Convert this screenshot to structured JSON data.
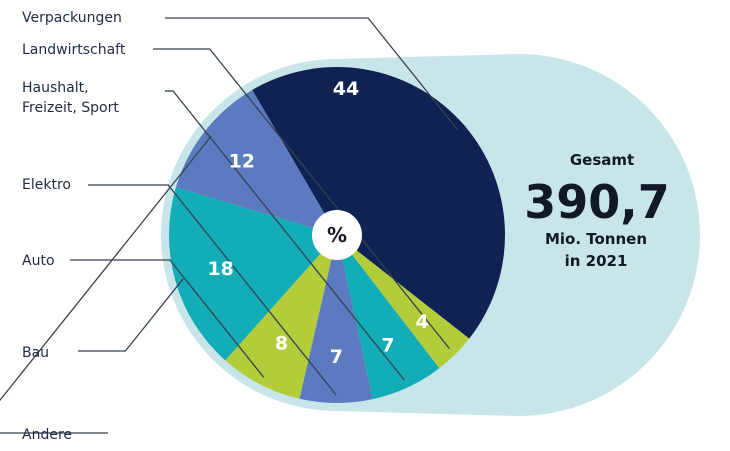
{
  "chart_data": {
    "type": "pie",
    "center_label": "%",
    "categories": [
      "Verpackungen",
      "Landwirtschaft",
      "Haushalt, Freizeit, Sport",
      "Elektro",
      "Auto",
      "Bau",
      "Andere"
    ],
    "category_lines": [
      [
        "Verpackungen"
      ],
      [
        "Landwirtschaft"
      ],
      [
        "Haushalt,",
        "Freizeit, Sport"
      ],
      [
        "Elektro"
      ],
      [
        "Auto"
      ],
      [
        "Bau"
      ],
      [
        "Andere"
      ]
    ],
    "values": [
      44,
      4,
      7,
      7,
      8,
      18,
      12
    ],
    "value_labels": [
      "44",
      "4",
      "7",
      "7",
      "8",
      "18",
      "12"
    ],
    "colors": [
      "#0e2353",
      "#b3cc3a",
      "#12adb7",
      "#5b7abf",
      "#b3cc3a",
      "#12adb7",
      "#5b7abf"
    ],
    "total": {
      "heading": "Gesamt",
      "value": "390,7",
      "unit": "Mio. Tonnen",
      "year": "in 2021"
    },
    "background_color": "#c8e6ea",
    "line_color": "#374151"
  }
}
